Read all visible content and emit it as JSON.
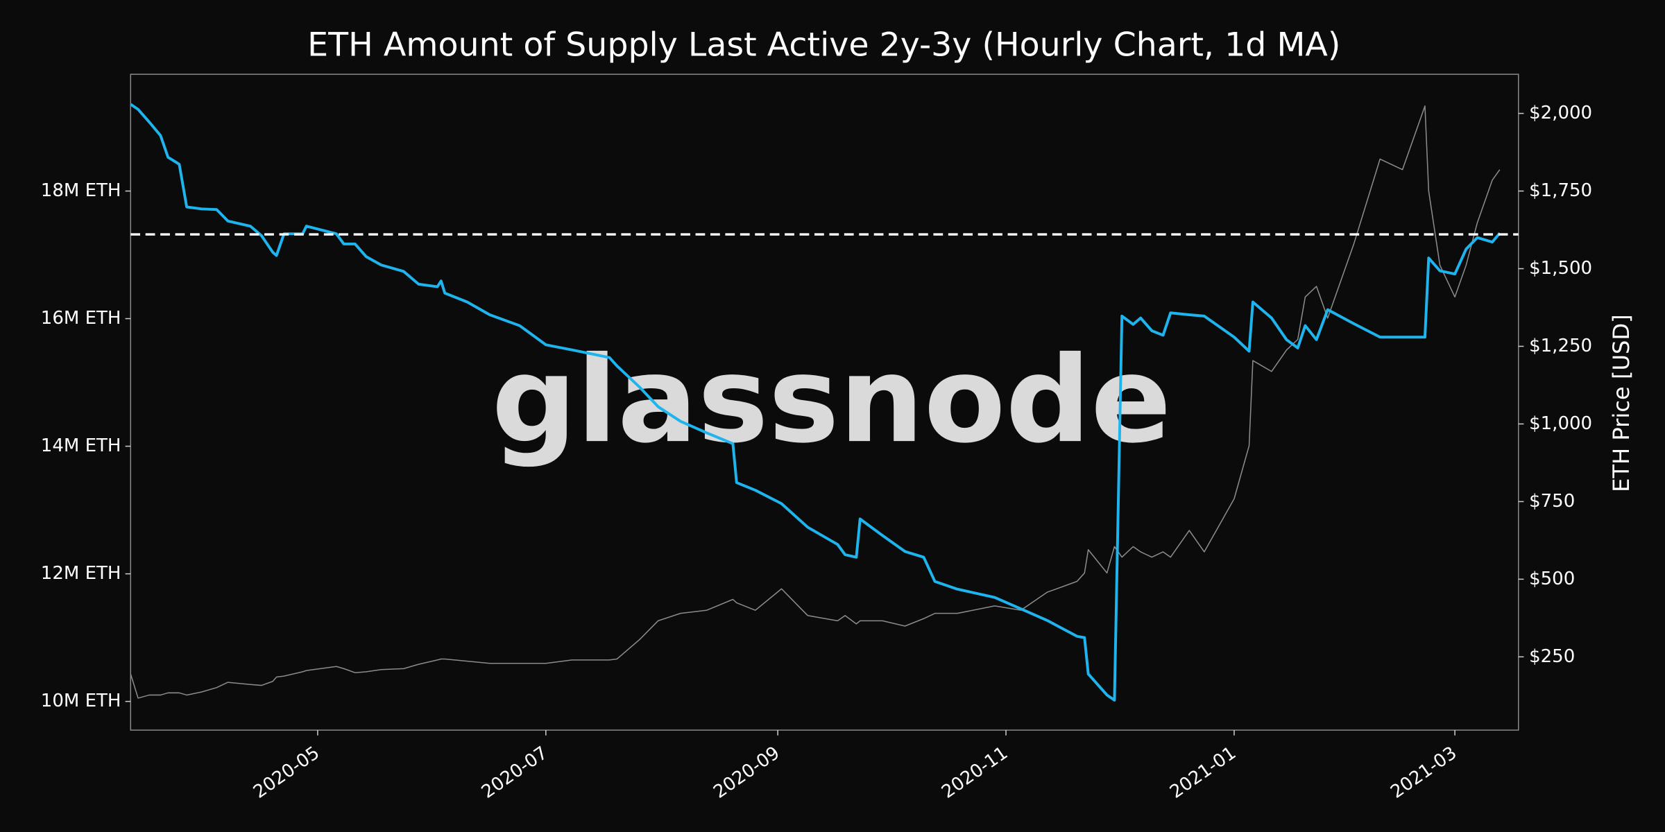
{
  "chart_data": {
    "type": "line",
    "title": "ETH Amount of Supply Last Active 2y-3y (Hourly Chart, 1d MA)",
    "y2label": "ETH Price [USD]",
    "watermark": "glassnode",
    "x": [
      "2020-03-12",
      "2020-03-14",
      "2020-03-17",
      "2020-03-20",
      "2020-03-22",
      "2020-03-25",
      "2020-03-27",
      "2020-03-31",
      "2020-04-04",
      "2020-04-07",
      "2020-04-13",
      "2020-04-16",
      "2020-04-19",
      "2020-04-20",
      "2020-04-22",
      "2020-04-27",
      "2020-04-28",
      "2020-05-06",
      "2020-05-08",
      "2020-05-11",
      "2020-05-14",
      "2020-05-18",
      "2020-05-24",
      "2020-05-28",
      "2020-06-02",
      "2020-06-03",
      "2020-06-04",
      "2020-06-10",
      "2020-06-16",
      "2020-06-24",
      "2020-07-01",
      "2020-07-08",
      "2020-07-18",
      "2020-07-20",
      "2020-07-26",
      "2020-07-31",
      "2020-08-06",
      "2020-08-13",
      "2020-08-20",
      "2020-08-21",
      "2020-08-26",
      "2020-09-02",
      "2020-09-09",
      "2020-09-17",
      "2020-09-19",
      "2020-09-22",
      "2020-09-23",
      "2020-09-29",
      "2020-10-05",
      "2020-10-10",
      "2020-10-13",
      "2020-10-19",
      "2020-10-29",
      "2020-11-05",
      "2020-11-12",
      "2020-11-20",
      "2020-11-22",
      "2020-11-23",
      "2020-11-28",
      "2020-11-30",
      "2020-12-02",
      "2020-12-05",
      "2020-12-07",
      "2020-12-10",
      "2020-12-13",
      "2020-12-15",
      "2020-12-20",
      "2020-12-24",
      "2021-01-01",
      "2021-01-05",
      "2021-01-06",
      "2021-01-11",
      "2021-01-15",
      "2021-01-18",
      "2021-01-20",
      "2021-01-23",
      "2021-01-26",
      "2021-02-02",
      "2021-02-09",
      "2021-02-15",
      "2021-02-21",
      "2021-02-22",
      "2021-02-25",
      "2021-03-01",
      "2021-03-04",
      "2021-03-07",
      "2021-03-11",
      "2021-03-13"
    ],
    "series": [
      {
        "name": "ETH Price [USD]",
        "axis": "y2",
        "color": "#8c8c8c",
        "width": 1,
        "values": [
          195,
          117,
          127,
          127,
          134,
          134,
          127,
          137,
          151,
          168,
          161,
          158,
          171,
          185,
          188,
          202,
          206,
          219,
          212,
          199,
          202,
          209,
          212,
          226,
          240,
          243,
          243,
          236,
          229,
          229,
          229,
          240,
          240,
          243,
          305,
          366,
          390,
          400,
          435,
          424,
          400,
          469,
          383,
          366,
          383,
          356,
          366,
          366,
          349,
          373,
          390,
          390,
          414,
          400,
          458,
          493,
          520,
          595,
          520,
          605,
          571,
          605,
          588,
          571,
          588,
          571,
          657,
          588,
          759,
          930,
          1204,
          1169,
          1238,
          1272,
          1409,
          1443,
          1341,
          1580,
          1853,
          1819,
          2024,
          1750,
          1511,
          1409,
          1511,
          1648,
          1785,
          1819
        ]
      },
      {
        "name": "Supply Last Active 2y-3y",
        "axis": "y",
        "color": "#1eb4ee",
        "width": 2.6,
        "values": [
          19360000,
          19280000,
          19080000,
          18870000,
          18530000,
          18420000,
          17750000,
          17720000,
          17710000,
          17530000,
          17450000,
          17300000,
          17040000,
          16990000,
          17330000,
          17330000,
          17450000,
          17330000,
          17170000,
          17170000,
          16970000,
          16840000,
          16740000,
          16540000,
          16500000,
          16590000,
          16400000,
          16260000,
          16060000,
          15890000,
          15590000,
          15510000,
          15390000,
          15260000,
          14930000,
          14620000,
          14390000,
          14210000,
          14040000,
          13430000,
          13310000,
          13100000,
          12730000,
          12460000,
          12300000,
          12260000,
          12860000,
          12600000,
          12350000,
          12260000,
          11880000,
          11760000,
          11630000,
          11450000,
          11270000,
          11020000,
          11000000,
          10430000,
          10100000,
          10020000,
          16040000,
          15910000,
          16010000,
          15810000,
          15740000,
          16090000,
          16060000,
          16040000,
          15710000,
          15490000,
          16260000,
          16010000,
          15670000,
          15540000,
          15890000,
          15670000,
          16140000,
          15920000,
          15710000,
          15710000,
          15710000,
          16950000,
          16750000,
          16700000,
          17090000,
          17270000,
          17200000,
          17340000
        ]
      }
    ],
    "hline": {
      "value": 17320000,
      "color": "#ffffff"
    },
    "xlim": [
      "2020-03-12",
      "2021-03-18"
    ],
    "xticks": [
      "2020-05",
      "2020-07",
      "2020-09",
      "2020-11",
      "2021-01",
      "2021-03"
    ],
    "ylim": [
      9550000,
      19830000
    ],
    "yticks": [
      {
        "value": 10000000,
        "label": "10M ETH"
      },
      {
        "value": 12000000,
        "label": "12M ETH"
      },
      {
        "value": 14000000,
        "label": "14M ETH"
      },
      {
        "value": 16000000,
        "label": "16M ETH"
      },
      {
        "value": 18000000,
        "label": "18M ETH"
      }
    ],
    "y2lim": [
      14,
      2126
    ],
    "y2ticks": [
      {
        "value": 250,
        "label": "$250"
      },
      {
        "value": 500,
        "label": "$500"
      },
      {
        "value": 750,
        "label": "$750"
      },
      {
        "value": 1000,
        "label": "$1,000"
      },
      {
        "value": 1250,
        "label": "$1,250"
      },
      {
        "value": 1500,
        "label": "$1,500"
      },
      {
        "value": 1750,
        "label": "$1,750"
      },
      {
        "value": 2000,
        "label": "$2,000"
      }
    ]
  }
}
